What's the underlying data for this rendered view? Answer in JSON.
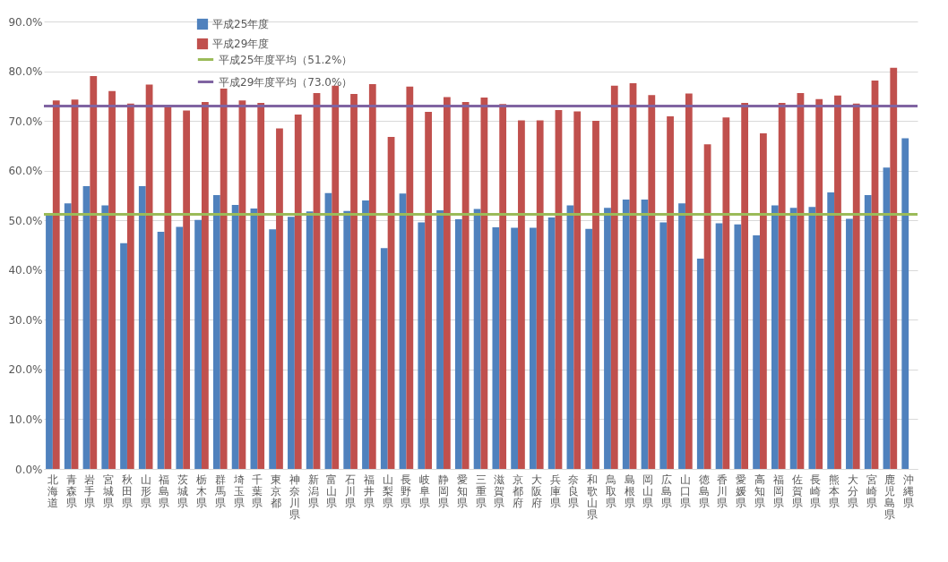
{
  "chart_data": {
    "type": "bar",
    "categories": [
      "北海道",
      "青森県",
      "岩手県",
      "宮城県",
      "秋田県",
      "山形県",
      "福島県",
      "茨城県",
      "栃木県",
      "群馬県",
      "埼玉県",
      "千葉県",
      "東京都",
      "神奈川県",
      "新潟県",
      "富山県",
      "石川県",
      "福井県",
      "山梨県",
      "長野県",
      "岐阜県",
      "静岡県",
      "愛知県",
      "三重県",
      "滋賀県",
      "京都府",
      "大阪府",
      "兵庫県",
      "奈良県",
      "和歌山県",
      "鳥取県",
      "島根県",
      "岡山県",
      "広島県",
      "山口県",
      "徳島県",
      "香川県",
      "愛媛県",
      "高知県",
      "福岡県",
      "佐賀県",
      "長崎県",
      "熊本県",
      "大分県",
      "宮崎県",
      "鹿児島県",
      "沖縄県"
    ],
    "series": [
      {
        "name": "平成25年度",
        "color": "#4f81bd",
        "values": [
          51.3,
          53.4,
          56.9,
          53.0,
          45.4,
          56.9,
          47.7,
          48.7,
          50.1,
          55.1,
          53.1,
          52.4,
          48.2,
          50.7,
          51.8,
          55.5,
          51.9,
          54.0,
          44.4,
          55.4,
          49.6,
          52.0,
          50.2,
          52.3,
          48.6,
          48.5,
          48.5,
          50.6,
          53.0,
          48.3,
          52.5,
          54.2,
          54.2,
          49.6,
          53.4,
          42.3,
          49.4,
          49.2,
          47.0,
          53.0,
          52.5,
          52.7,
          55.6,
          50.3,
          55.1,
          60.6,
          66.5
        ]
      },
      {
        "name": "平成29年度",
        "color": "#c0504d",
        "values": [
          74.1,
          74.3,
          79.0,
          76.0,
          73.5,
          77.3,
          73.0,
          72.1,
          73.8,
          76.5,
          74.1,
          73.6,
          68.5,
          71.3,
          75.6,
          77.1,
          75.4,
          77.4,
          66.8,
          76.9,
          71.8,
          74.8,
          73.8,
          74.7,
          73.4,
          70.1,
          70.1,
          72.2,
          71.9,
          70.0,
          77.1,
          77.6,
          75.2,
          70.9,
          75.5,
          65.3,
          70.7,
          73.6,
          67.5,
          73.6,
          75.6,
          74.4,
          75.1,
          73.5,
          78.1,
          80.7,
          null
        ]
      }
    ],
    "ref_lines": [
      {
        "axis": "y",
        "value": 51.2,
        "label": "平成25年度平均（51.2%）",
        "color": "#9bbb59"
      },
      {
        "axis": "y",
        "value": 73.0,
        "label": "平成29年度平均（73.0%）",
        "color": "#8064a2"
      }
    ],
    "ylim": [
      0,
      90
    ],
    "yticks": [
      {
        "value": 0,
        "label": "0.0%"
      },
      {
        "value": 10,
        "label": "10.0%"
      },
      {
        "value": 20,
        "label": "20.0%"
      },
      {
        "value": 30,
        "label": "30.0%"
      },
      {
        "value": 40,
        "label": "40.0%"
      },
      {
        "value": 50,
        "label": "50.0%"
      },
      {
        "value": 60,
        "label": "60.0%"
      },
      {
        "value": 70,
        "label": "70.0%"
      },
      {
        "value": 80,
        "label": "80.0%"
      },
      {
        "value": 90,
        "label": "90.0%"
      }
    ],
    "grid": "y",
    "legend": "top left"
  }
}
